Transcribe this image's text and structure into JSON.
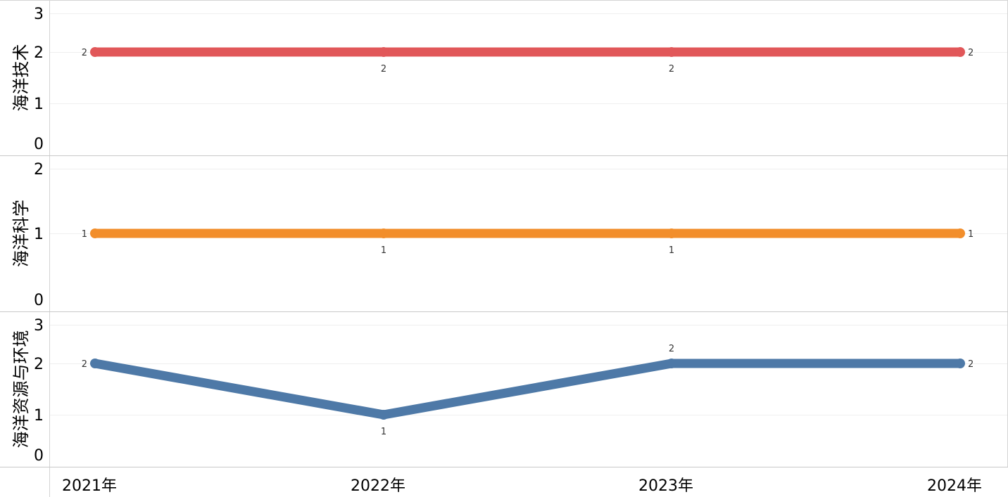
{
  "chart_data": {
    "type": "line",
    "categories": [
      "2021年",
      "2022年",
      "2023年",
      "2024年"
    ],
    "grid": true,
    "panels": [
      {
        "name": "海洋技术",
        "color": "#e15759",
        "values": [
          2,
          2,
          2,
          2
        ],
        "ylim": [
          0,
          3
        ],
        "yticks": [
          "0",
          "1",
          "2",
          "3"
        ],
        "data_labels": [
          "2",
          "2",
          "2",
          "2"
        ]
      },
      {
        "name": "海洋科学",
        "color": "#f28e2b",
        "values": [
          1,
          1,
          1,
          1
        ],
        "ylim": [
          0,
          2
        ],
        "yticks": [
          "0",
          "1",
          "2"
        ],
        "data_labels": [
          "1",
          "1",
          "1",
          "1"
        ]
      },
      {
        "name": "海洋资源与环境",
        "color": "#4e79a7",
        "values": [
          2,
          1,
          2,
          2
        ],
        "ylim": [
          0,
          3
        ],
        "yticks": [
          "0",
          "1",
          "2",
          "3"
        ],
        "data_labels": [
          "2",
          "1",
          "2",
          "2"
        ]
      }
    ]
  }
}
